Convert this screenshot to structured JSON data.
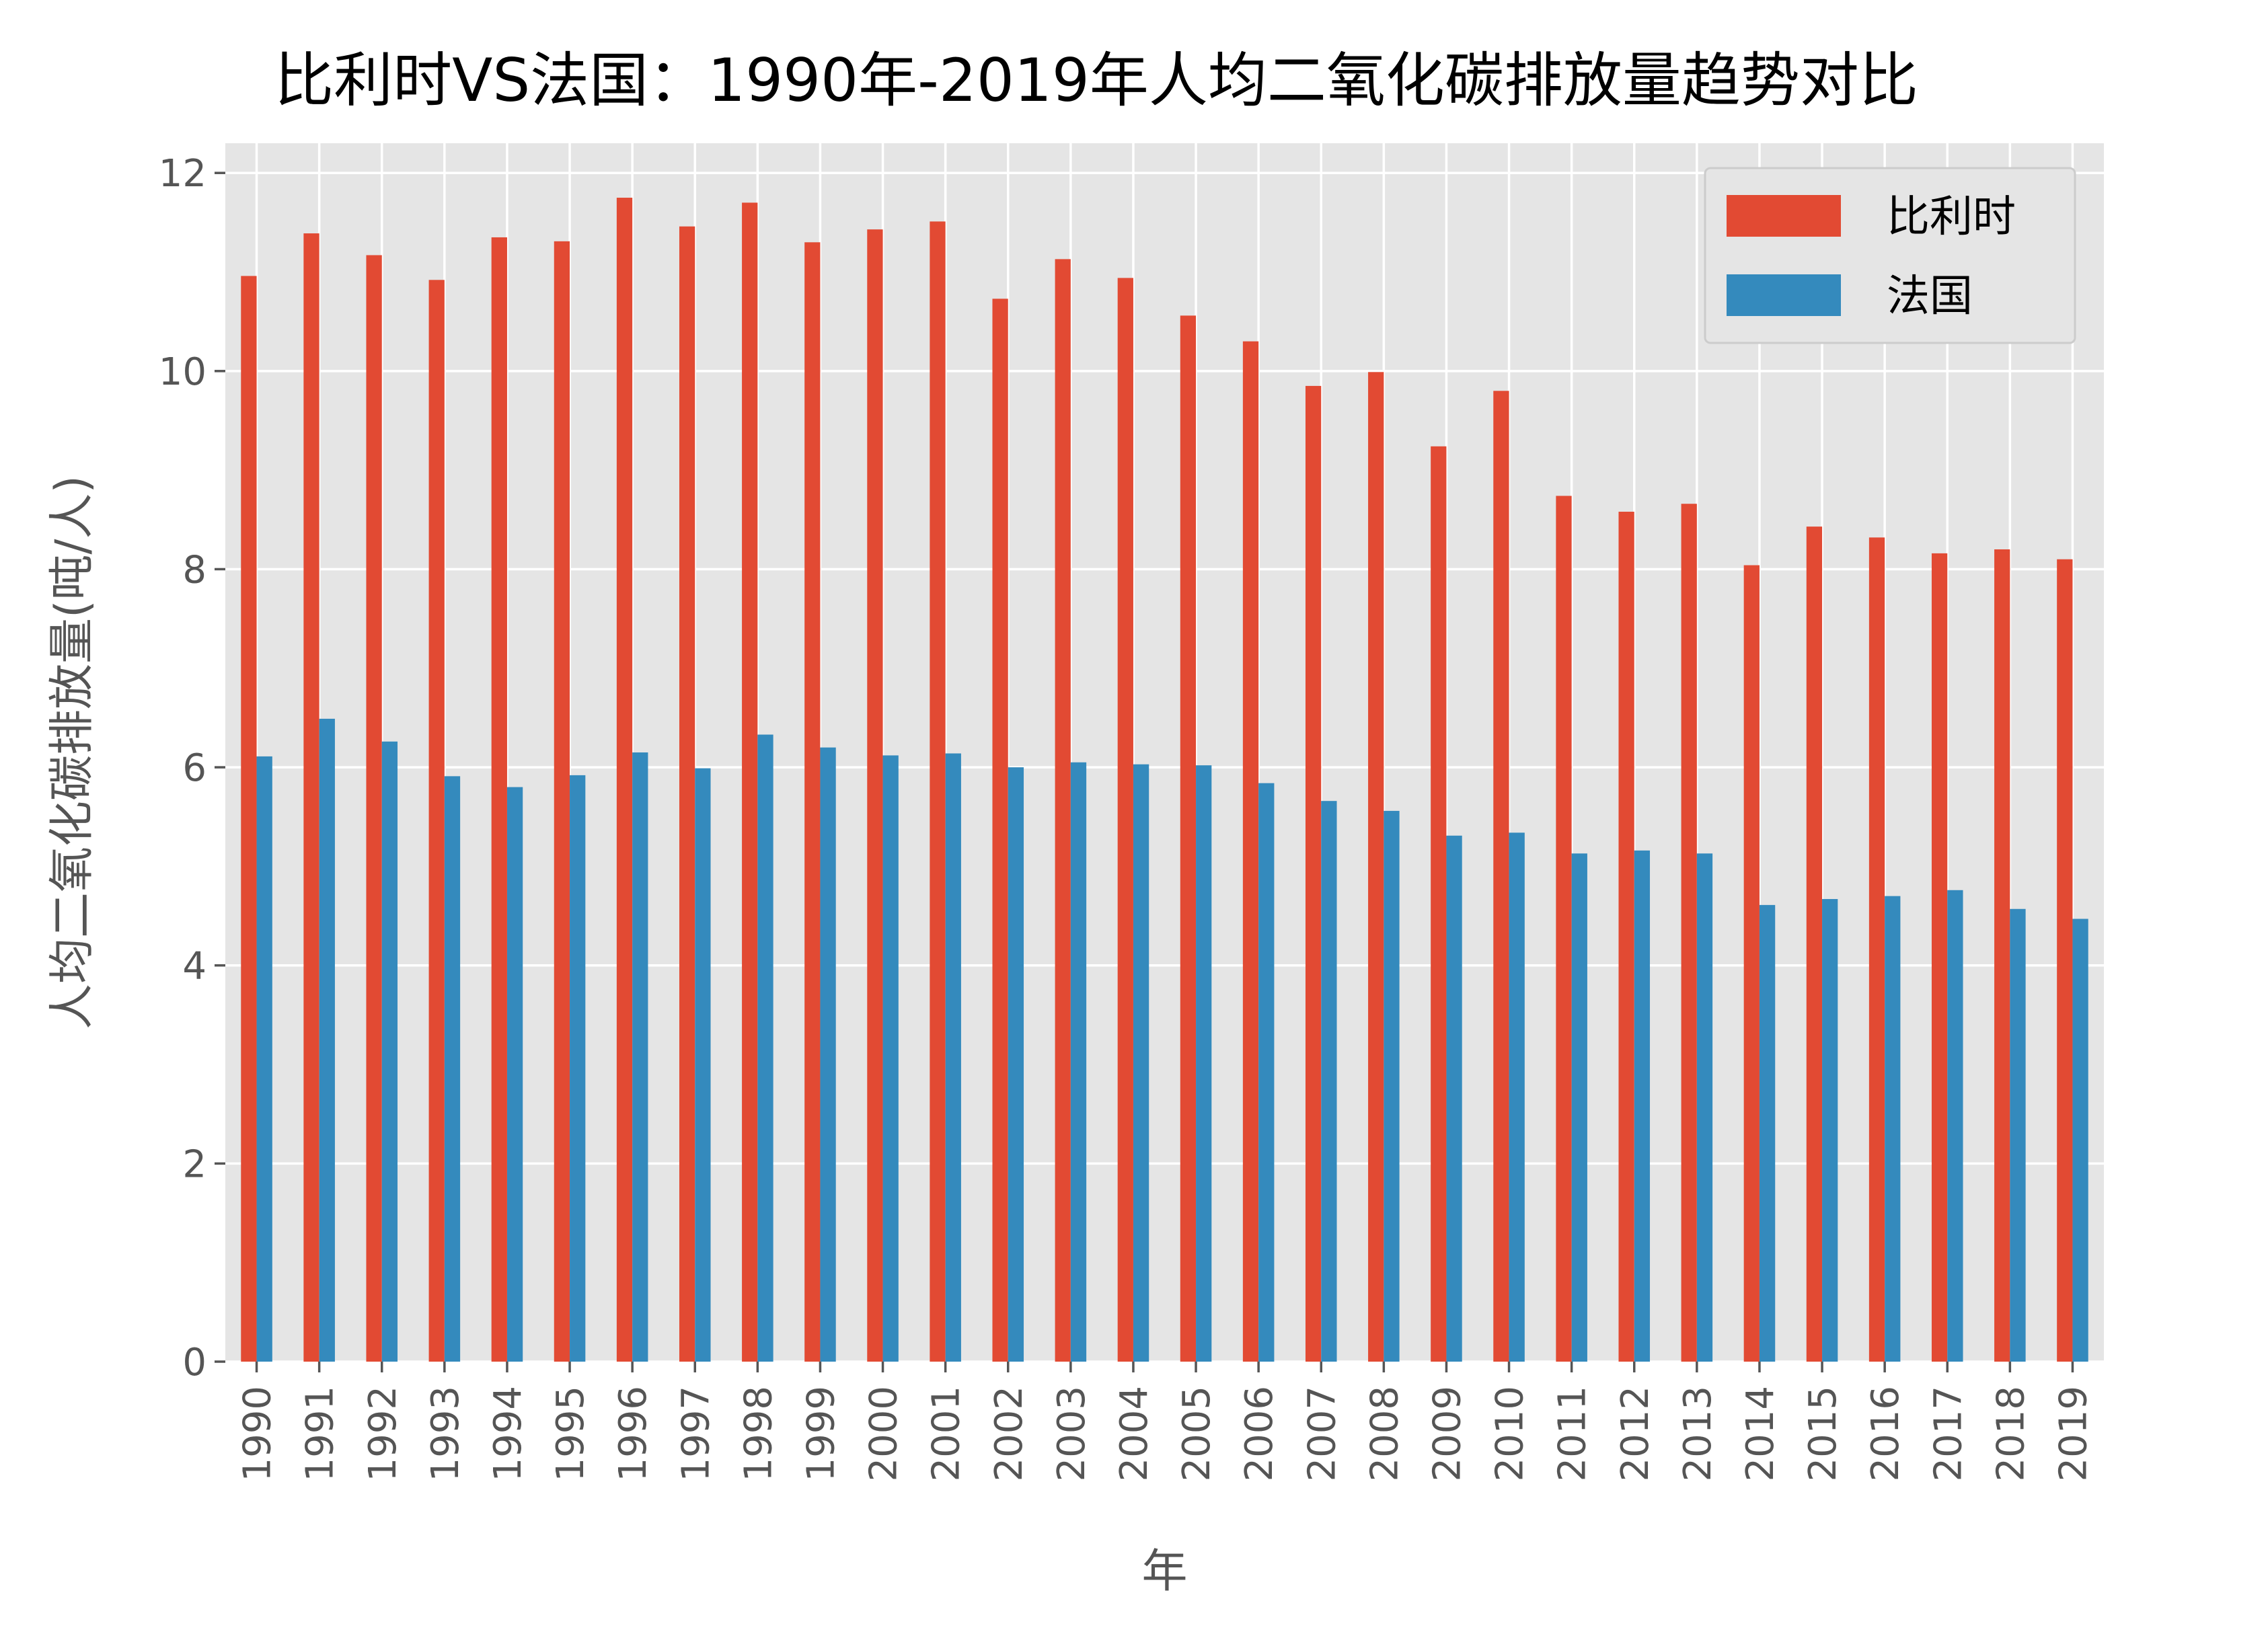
{
  "chart_data": {
    "type": "bar",
    "title": "比利时VS法国：1990年-2019年人均二氧化碳排放量趋势对比",
    "xlabel": "年",
    "ylabel": "人均二氧化碳排放量(吨/人)",
    "ylim": [
      0,
      12.3
    ],
    "yticks": [
      0,
      2,
      4,
      6,
      8,
      10,
      12
    ],
    "grid": true,
    "legend_position": "top-right",
    "categories": [
      "1990",
      "1991",
      "1992",
      "1993",
      "1994",
      "1995",
      "1996",
      "1997",
      "1998",
      "1999",
      "2000",
      "2001",
      "2002",
      "2003",
      "2004",
      "2005",
      "2006",
      "2007",
      "2008",
      "2009",
      "2010",
      "2011",
      "2012",
      "2013",
      "2014",
      "2015",
      "2016",
      "2017",
      "2018",
      "2019"
    ],
    "series": [
      {
        "name": "比利时",
        "color": "#e24a33",
        "values": [
          10.96,
          11.39,
          11.17,
          10.92,
          11.35,
          11.31,
          11.75,
          11.46,
          11.7,
          11.3,
          11.43,
          11.51,
          10.73,
          11.13,
          10.94,
          10.56,
          10.3,
          9.85,
          9.99,
          9.24,
          9.8,
          8.74,
          8.58,
          8.66,
          8.04,
          8.43,
          8.32,
          8.16,
          8.2,
          8.1
        ]
      },
      {
        "name": "法国",
        "color": "#348abd",
        "values": [
          6.11,
          6.49,
          6.26,
          5.91,
          5.8,
          5.92,
          6.15,
          5.99,
          6.33,
          6.2,
          6.12,
          6.14,
          6.0,
          6.05,
          6.03,
          6.02,
          5.84,
          5.66,
          5.56,
          5.31,
          5.34,
          5.13,
          5.16,
          5.13,
          4.61,
          4.67,
          4.7,
          4.76,
          4.57,
          4.47
        ]
      }
    ]
  }
}
